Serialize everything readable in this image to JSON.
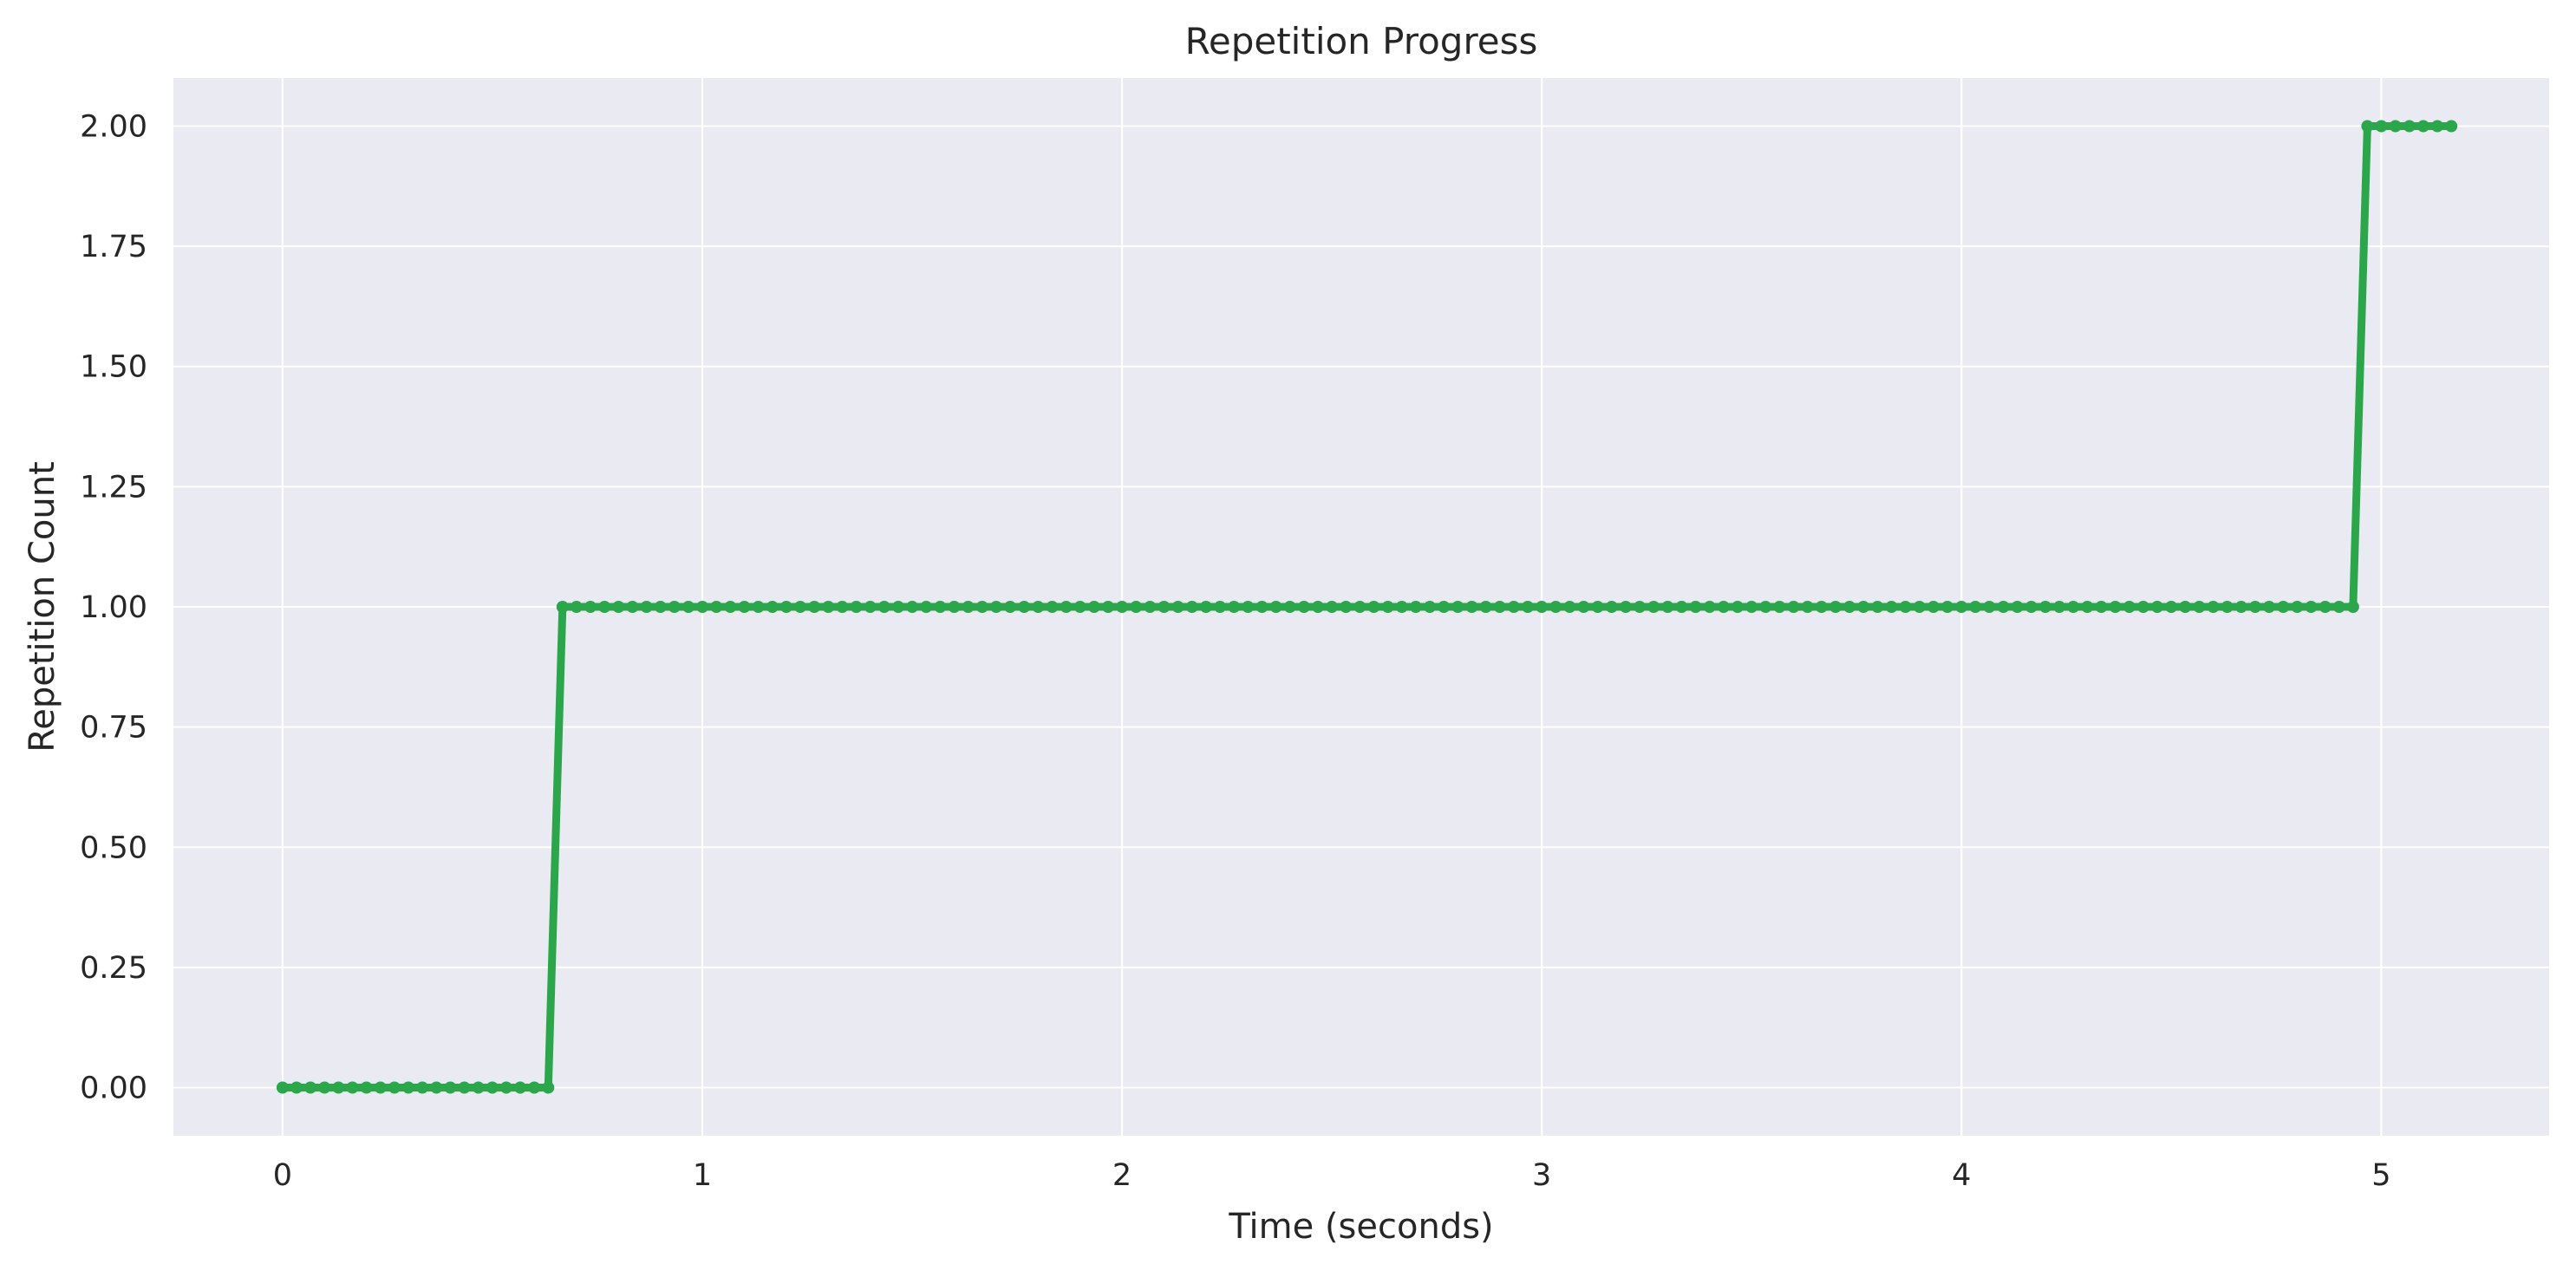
{
  "chart_data": {
    "type": "line",
    "title": "Repetition Progress",
    "xlabel": "Time (seconds)",
    "ylabel": "Repetition Count",
    "xlim": [
      -0.26,
      5.4
    ],
    "ylim": [
      -0.1,
      2.1
    ],
    "x_ticks": [
      0,
      1,
      2,
      3,
      4,
      5
    ],
    "x_tick_labels": [
      "0",
      "1",
      "2",
      "3",
      "4",
      "5"
    ],
    "y_ticks": [
      0,
      0.25,
      0.5,
      0.75,
      1.0,
      1.25,
      1.5,
      1.75,
      2.0
    ],
    "y_tick_labels": [
      "0.00",
      "0.25",
      "0.50",
      "0.75",
      "1.00",
      "1.25",
      "1.50",
      "1.75",
      "2.00"
    ],
    "grid": true,
    "background_color": "#eaeaf2",
    "grid_color": "#ffffff",
    "series": [
      {
        "color": "#2ca64a",
        "marker": "circle",
        "sample_interval": 0.0333,
        "points": [
          [
            0,
            0
          ],
          [
            0.633,
            0
          ],
          [
            0.667,
            1
          ],
          [
            4.933,
            1
          ],
          [
            4.967,
            2
          ],
          [
            5.167,
            2
          ]
        ]
      }
    ]
  }
}
